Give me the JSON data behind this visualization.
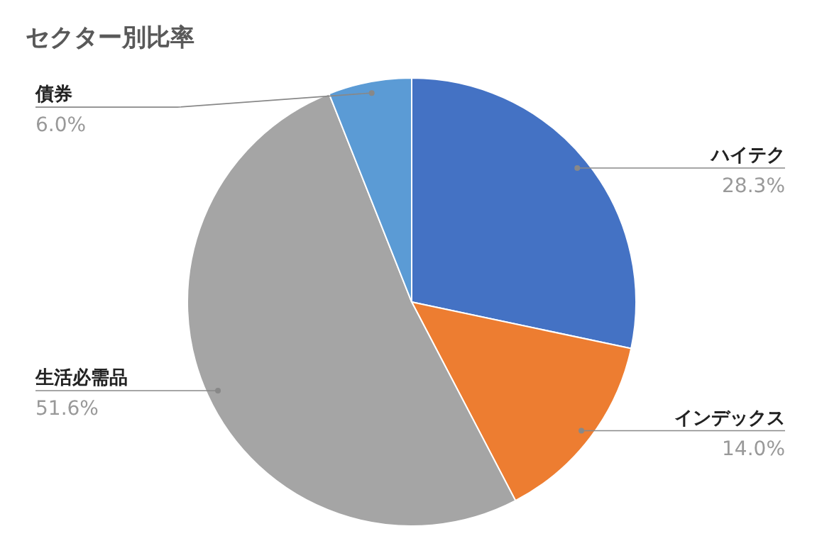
{
  "chart_data": {
    "type": "pie",
    "title": "セクター別比率",
    "categories": [
      "ハイテク",
      "インデックス",
      "生活必需品",
      "債券"
    ],
    "values": [
      28.3,
      14.0,
      51.6,
      6.0
    ],
    "value_labels": [
      "28.3%",
      "14.0%",
      "51.6%",
      "6.0%"
    ],
    "colors": [
      "#4472c4",
      "#ed7d31",
      "#a5a5a5",
      "#5b9bd5"
    ]
  }
}
